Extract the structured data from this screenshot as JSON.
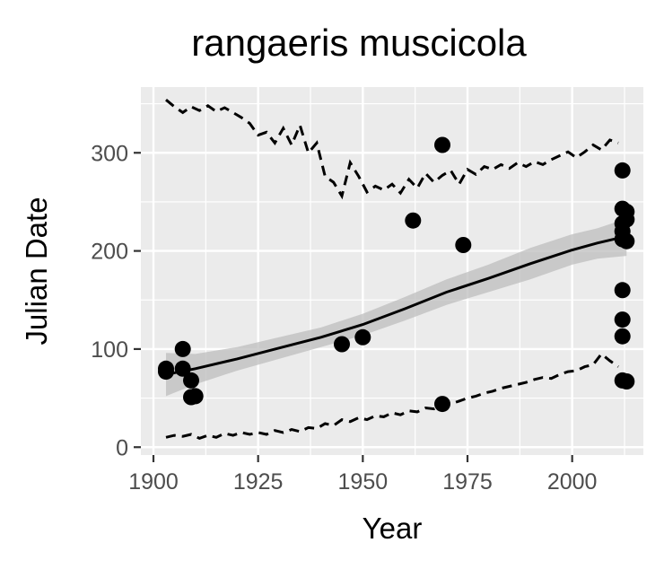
{
  "chart_data": {
    "type": "scatter",
    "title": "rangaeris muscicola",
    "xlabel": "Year",
    "ylabel": "Julian Date",
    "xlim": [
      1897,
      2017
    ],
    "ylim": [
      -8,
      367
    ],
    "x_ticks": [
      1900,
      1925,
      1950,
      1975,
      2000
    ],
    "y_ticks": [
      0,
      100,
      200,
      300
    ],
    "grid": true,
    "legend": "none",
    "colors": {
      "panel": "#ebebeb",
      "grid": "#ffffff",
      "points": "#000000",
      "ribbon": "#bdbdbd",
      "text": "#000000",
      "tick_text": "#4d4d4d"
    },
    "points": [
      {
        "x": 1903,
        "y": 80
      },
      {
        "x": 1903,
        "y": 77
      },
      {
        "x": 1907,
        "y": 100
      },
      {
        "x": 1907,
        "y": 80
      },
      {
        "x": 1909,
        "y": 68
      },
      {
        "x": 1909,
        "y": 51
      },
      {
        "x": 1910,
        "y": 52
      },
      {
        "x": 1945,
        "y": 105
      },
      {
        "x": 1950,
        "y": 112
      },
      {
        "x": 1962,
        "y": 231
      },
      {
        "x": 1969,
        "y": 308
      },
      {
        "x": 1969,
        "y": 44
      },
      {
        "x": 1974,
        "y": 206
      },
      {
        "x": 2012,
        "y": 282
      },
      {
        "x": 2012,
        "y": 243
      },
      {
        "x": 2012,
        "y": 228
      },
      {
        "x": 2012,
        "y": 220
      },
      {
        "x": 2012,
        "y": 212
      },
      {
        "x": 2012,
        "y": 160
      },
      {
        "x": 2012,
        "y": 130
      },
      {
        "x": 2012,
        "y": 113
      },
      {
        "x": 2012,
        "y": 68
      },
      {
        "x": 2013,
        "y": 240
      },
      {
        "x": 2013,
        "y": 232
      },
      {
        "x": 2013,
        "y": 210
      },
      {
        "x": 2013,
        "y": 67
      }
    ],
    "trend": {
      "x": [
        1903,
        1910,
        1920,
        1930,
        1940,
        1950,
        1960,
        1970,
        1980,
        1990,
        2000,
        2006,
        2013
      ],
      "y": [
        74,
        80,
        90,
        101,
        112,
        125,
        141,
        158,
        172,
        187,
        201,
        208,
        215
      ],
      "lower": [
        52,
        64,
        78,
        90,
        102,
        114,
        129,
        145,
        158,
        171,
        186,
        192,
        195
      ],
      "upper": [
        96,
        95,
        102,
        112,
        122,
        136,
        153,
        171,
        186,
        203,
        217,
        223,
        233
      ]
    },
    "upper_quantile": {
      "x": [
        1903,
        1905,
        1907,
        1909,
        1911,
        1913,
        1915,
        1917,
        1919,
        1921,
        1923,
        1925,
        1927,
        1929,
        1931,
        1933,
        1935,
        1937,
        1939,
        1941,
        1943,
        1945,
        1947,
        1949,
        1951,
        1953,
        1955,
        1957,
        1959,
        1961,
        1963,
        1965,
        1967,
        1969,
        1971,
        1973,
        1975,
        1977,
        1979,
        1981,
        1983,
        1985,
        1987,
        1989,
        1991,
        1993,
        1995,
        1997,
        1999,
        2001,
        2003,
        2005,
        2007,
        2009,
        2011
      ],
      "y": [
        354,
        347,
        341,
        347,
        343,
        348,
        342,
        346,
        341,
        336,
        330,
        318,
        321,
        310,
        325,
        308,
        328,
        300,
        310,
        276,
        270,
        256,
        290,
        276,
        260,
        266,
        262,
        268,
        259,
        273,
        264,
        279,
        270,
        277,
        282,
        268,
        283,
        278,
        286,
        283,
        288,
        284,
        290,
        286,
        291,
        288,
        293,
        297,
        301,
        295,
        301,
        308,
        303,
        313,
        310
      ]
    },
    "lower_quantile": {
      "x": [
        1903,
        1905,
        1907,
        1909,
        1911,
        1913,
        1915,
        1917,
        1919,
        1921,
        1923,
        1925,
        1927,
        1929,
        1931,
        1933,
        1935,
        1937,
        1939,
        1941,
        1943,
        1945,
        1947,
        1949,
        1951,
        1953,
        1955,
        1957,
        1959,
        1961,
        1963,
        1965,
        1967,
        1969,
        1971,
        1973,
        1975,
        1977,
        1979,
        1981,
        1983,
        1985,
        1987,
        1989,
        1991,
        1993,
        1995,
        1997,
        1999,
        2001,
        2003,
        2005,
        2007,
        2009,
        2011
      ],
      "y": [
        10,
        12,
        11,
        13,
        9,
        12,
        10,
        14,
        12,
        15,
        13,
        15,
        13,
        17,
        15,
        18,
        16,
        20,
        19,
        24,
        22,
        28,
        26,
        30,
        28,
        32,
        31,
        35,
        33,
        37,
        36,
        40,
        39,
        43,
        44,
        47,
        50,
        52,
        55,
        57,
        60,
        62,
        64,
        66,
        69,
        71,
        70,
        74,
        77,
        78,
        82,
        84,
        95,
        88,
        82
      ]
    }
  }
}
